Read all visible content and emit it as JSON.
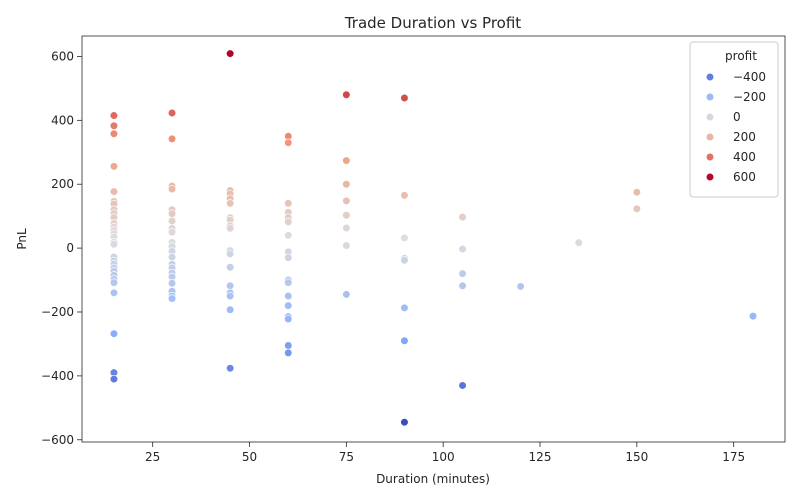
{
  "chart_data": {
    "type": "scatter",
    "title": "Trade Duration vs Profit",
    "xlabel": "Duration (minutes)",
    "ylabel": "PnL",
    "xlim": [
      6.75,
      188.25
    ],
    "ylim": [
      -607,
      664
    ],
    "xticks": [
      25,
      50,
      75,
      100,
      125,
      150,
      175
    ],
    "yticks": [
      -600,
      -400,
      -200,
      0,
      200,
      400,
      600
    ],
    "grid": false,
    "colormap": "coolwarm",
    "color_range": [
      -545,
      609
    ],
    "legend": {
      "title": "profit",
      "placement": "top-right",
      "entries": [
        {
          "label": "−400",
          "value": -400
        },
        {
          "label": "−200",
          "value": -200
        },
        {
          "label": "0",
          "value": 0
        },
        {
          "label": "200",
          "value": 200
        },
        {
          "label": "400",
          "value": 400
        },
        {
          "label": "600",
          "value": 600
        }
      ]
    },
    "points": [
      [
        15,
        415
      ],
      [
        15,
        383
      ],
      [
        15,
        358
      ],
      [
        15,
        256
      ],
      [
        15,
        177
      ],
      [
        15,
        146
      ],
      [
        15,
        138
      ],
      [
        15,
        120
      ],
      [
        15,
        108
      ],
      [
        15,
        96
      ],
      [
        15,
        78
      ],
      [
        15,
        66
      ],
      [
        15,
        55
      ],
      [
        15,
        45
      ],
      [
        15,
        35
      ],
      [
        15,
        18
      ],
      [
        15,
        12
      ],
      [
        15,
        -28
      ],
      [
        15,
        -40
      ],
      [
        15,
        -50
      ],
      [
        15,
        -62
      ],
      [
        15,
        -72
      ],
      [
        15,
        -85
      ],
      [
        15,
        -98
      ],
      [
        15,
        -108
      ],
      [
        15,
        -140
      ],
      [
        15,
        -268
      ],
      [
        15,
        -390
      ],
      [
        15,
        -410
      ],
      [
        30,
        423
      ],
      [
        30,
        342
      ],
      [
        30,
        194
      ],
      [
        30,
        185
      ],
      [
        30,
        120
      ],
      [
        30,
        108
      ],
      [
        30,
        85
      ],
      [
        30,
        62
      ],
      [
        30,
        50
      ],
      [
        30,
        18
      ],
      [
        30,
        5
      ],
      [
        30,
        -10
      ],
      [
        30,
        -28
      ],
      [
        30,
        -50
      ],
      [
        30,
        -62
      ],
      [
        30,
        -78
      ],
      [
        30,
        -90
      ],
      [
        30,
        -110
      ],
      [
        30,
        -135
      ],
      [
        30,
        -150
      ],
      [
        30,
        -158
      ],
      [
        45,
        609
      ],
      [
        45,
        180
      ],
      [
        45,
        170
      ],
      [
        45,
        155
      ],
      [
        45,
        140
      ],
      [
        45,
        95
      ],
      [
        45,
        88
      ],
      [
        45,
        70
      ],
      [
        45,
        62
      ],
      [
        45,
        -8
      ],
      [
        45,
        -18
      ],
      [
        45,
        -60
      ],
      [
        45,
        -118
      ],
      [
        45,
        -140
      ],
      [
        45,
        -150
      ],
      [
        45,
        -193
      ],
      [
        45,
        -376
      ],
      [
        60,
        350
      ],
      [
        60,
        330
      ],
      [
        60,
        140
      ],
      [
        60,
        112
      ],
      [
        60,
        96
      ],
      [
        60,
        82
      ],
      [
        60,
        40
      ],
      [
        60,
        -12
      ],
      [
        60,
        -30
      ],
      [
        60,
        -100
      ],
      [
        60,
        -108
      ],
      [
        60,
        -150
      ],
      [
        60,
        -180
      ],
      [
        60,
        -215
      ],
      [
        60,
        -222
      ],
      [
        60,
        -305
      ],
      [
        60,
        -328
      ],
      [
        75,
        480
      ],
      [
        75,
        274
      ],
      [
        75,
        200
      ],
      [
        75,
        148
      ],
      [
        75,
        103
      ],
      [
        75,
        63
      ],
      [
        75,
        8
      ],
      [
        75,
        -145
      ],
      [
        90,
        470
      ],
      [
        90,
        165
      ],
      [
        90,
        32
      ],
      [
        90,
        -32
      ],
      [
        90,
        -38
      ],
      [
        90,
        -187
      ],
      [
        90,
        -290
      ],
      [
        90,
        -545
      ],
      [
        105,
        97
      ],
      [
        105,
        -3
      ],
      [
        105,
        -80
      ],
      [
        105,
        -118
      ],
      [
        105,
        -430
      ],
      [
        120,
        -120
      ],
      [
        135,
        17
      ],
      [
        150,
        175
      ],
      [
        150,
        123
      ],
      [
        180,
        -213
      ]
    ]
  }
}
